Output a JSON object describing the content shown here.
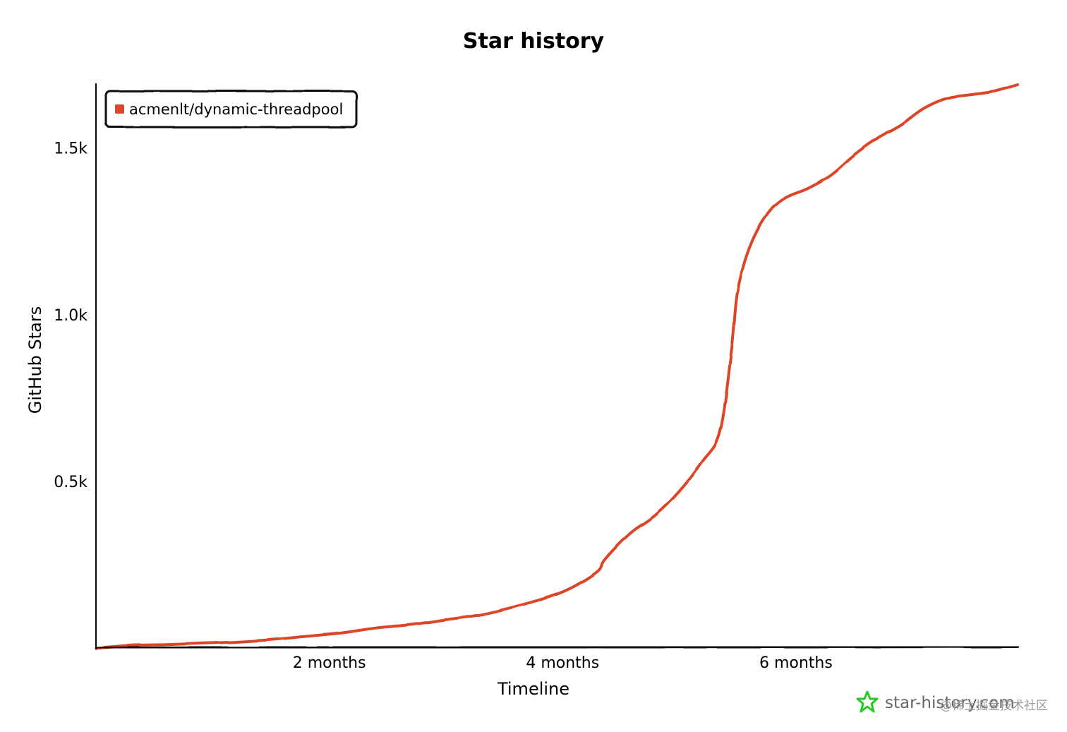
{
  "chart_data": {
    "type": "line",
    "title": "Star history",
    "xlabel": "Timeline",
    "ylabel": "GitHub Stars",
    "x_unit": "months",
    "xlim": [
      0,
      7.9
    ],
    "ylim": [
      0,
      1690
    ],
    "x_ticks": [
      {
        "value": 2,
        "label": "2 months"
      },
      {
        "value": 4,
        "label": "4 months"
      },
      {
        "value": 6,
        "label": "6 months"
      }
    ],
    "y_ticks": [
      {
        "value": 500,
        "label": "0.5k"
      },
      {
        "value": 1000,
        "label": "1.0k"
      },
      {
        "value": 1500,
        "label": "1.5k"
      }
    ],
    "legend_position": "top-left",
    "grid": false,
    "series": [
      {
        "name": "acmenlt/dynamic-threadpool",
        "color": "#dd4528",
        "x": [
          0,
          0.3,
          0.6,
          0.9,
          1.2,
          1.5,
          1.8,
          2.1,
          2.4,
          2.7,
          3.0,
          3.3,
          3.6,
          3.9,
          4.1,
          4.3,
          4.35,
          4.45,
          4.6,
          4.8,
          5.0,
          5.2,
          5.35,
          5.45,
          5.5,
          5.6,
          5.75,
          5.9,
          6.1,
          6.3,
          6.5,
          6.7,
          6.9,
          7.1,
          7.3,
          7.5,
          7.7,
          7.9
        ],
        "y": [
          0,
          8,
          10,
          14,
          18,
          25,
          35,
          45,
          60,
          70,
          85,
          100,
          125,
          155,
          185,
          230,
          260,
          300,
          350,
          400,
          470,
          560,
          650,
          900,
          1070,
          1200,
          1300,
          1350,
          1380,
          1420,
          1480,
          1530,
          1570,
          1620,
          1650,
          1660,
          1670,
          1690
        ]
      }
    ]
  },
  "brand": {
    "text": "star-history.com",
    "icon": "star-icon",
    "icon_color": "#22cc22"
  },
  "watermark": {
    "text": "@稀土掘金技术社区"
  }
}
